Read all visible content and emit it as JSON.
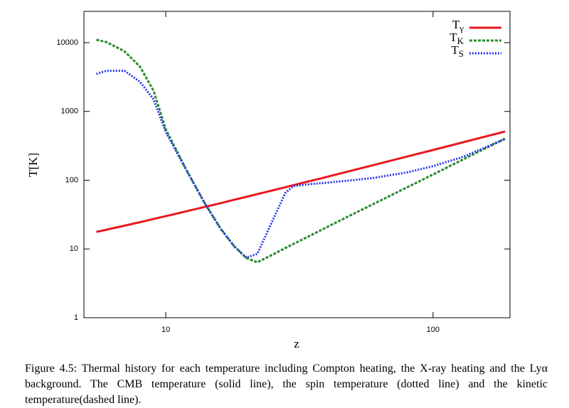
{
  "chart_data": {
    "type": "line",
    "xlabel": "z",
    "ylabel": "T[K]",
    "xlog": true,
    "ylog": true,
    "xlim": [
      4.94,
      194
    ],
    "ylim": [
      1,
      28500
    ],
    "xticks": [
      10,
      100
    ],
    "yticks": [
      1,
      10,
      100,
      1000,
      10000
    ],
    "legend": "upper right",
    "x": [
      5.5,
      6,
      7,
      8,
      9,
      10,
      12,
      14,
      16,
      18,
      20,
      22,
      25,
      28,
      30,
      35,
      40,
      50,
      60,
      80,
      100,
      130,
      160,
      186
    ],
    "series": [
      {
        "name": "Tγ",
        "color": "#e8191f",
        "line_style": "solid",
        "values": [
          17.7,
          19.1,
          21.8,
          24.5,
          27.3,
          30,
          35.4,
          40.9,
          46.3,
          51.8,
          57.2,
          62.7,
          70.9,
          79,
          84.5,
          98.1,
          111.7,
          139,
          166,
          221,
          275,
          357,
          439,
          510
        ]
      },
      {
        "name": "TK",
        "color": "#2a8a2a",
        "line_style": "dashed",
        "values": [
          11000,
          10200,
          7500,
          4500,
          2000,
          550,
          136,
          46,
          20,
          11,
          7.4,
          6.4,
          8.2,
          10.3,
          11.8,
          15.9,
          20.7,
          31.9,
          45.3,
          78.9,
          121,
          202,
          302,
          400
        ]
      },
      {
        "name": "TS",
        "color": "#2233ee",
        "line_style": "dotted",
        "values": [
          3500,
          3900,
          3900,
          2700,
          1500,
          500,
          136,
          46,
          20,
          11,
          7.5,
          8.5,
          25,
          65,
          82,
          88,
          92,
          100,
          108,
          130,
          160,
          220,
          310,
          400
        ]
      }
    ]
  },
  "caption": "Figure 4.5: Thermal history for each temperature including Compton heating, the X-ray heating and the Lyα background. The CMB temperature (solid line), the spin temperature (dotted line) and the kinetic temperature(dashed line)."
}
